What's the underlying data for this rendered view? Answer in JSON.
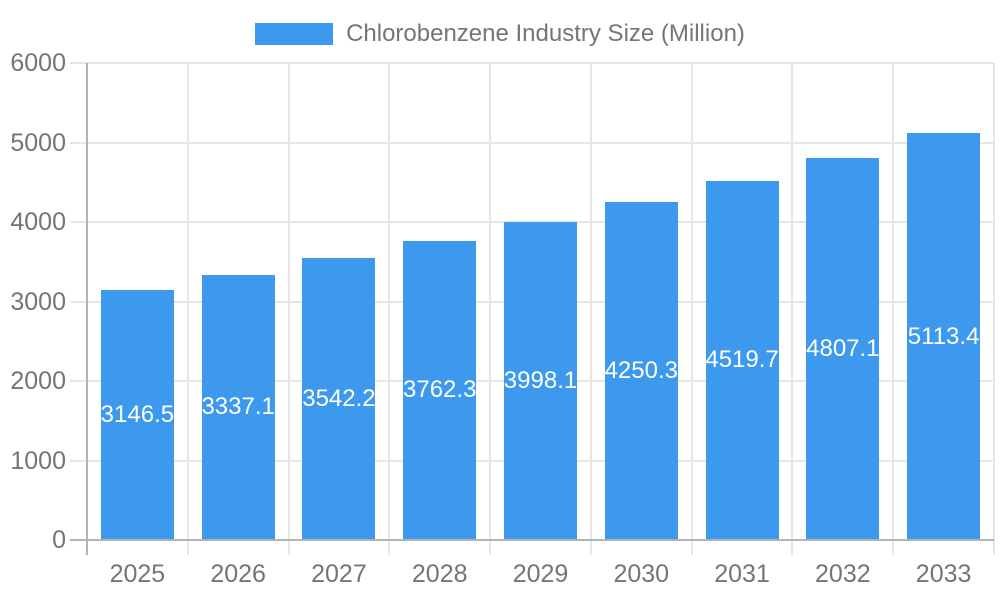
{
  "chart_data": {
    "type": "bar",
    "title": "Chlorobenzene Industry Size (Million)",
    "categories": [
      "2025",
      "2026",
      "2027",
      "2028",
      "2029",
      "2030",
      "2031",
      "2032",
      "2033"
    ],
    "series": [
      {
        "name": "Chlorobenzene Industry Size (Million)",
        "values": [
          3146.5,
          3337.1,
          3542.2,
          3762.3,
          3998.1,
          4250.3,
          4519.7,
          4807.1,
          5113.4
        ]
      }
    ],
    "value_labels": [
      "3146.5",
      "3337.1",
      "3542.2",
      "3762.3",
      "3998.1",
      "4250.3",
      "4519.7",
      "4807.1",
      "5113.4"
    ],
    "xlabel": "",
    "ylabel": "",
    "ylim": [
      0,
      6000
    ],
    "ytick_step": 1000,
    "ytick_labels": [
      "0",
      "1000",
      "2000",
      "3000",
      "4000",
      "5000",
      "6000"
    ],
    "grid": true,
    "legend_position": "top",
    "value_label_position": "inside-center",
    "colors": {
      "bar": "#3c99ed",
      "axis_text": "#757575",
      "title_text": "#757575",
      "grid_line": "#e6e6e6",
      "axis_line": "#b3b3b3",
      "value_label": "#ffffff",
      "background": "#ffffff"
    }
  }
}
